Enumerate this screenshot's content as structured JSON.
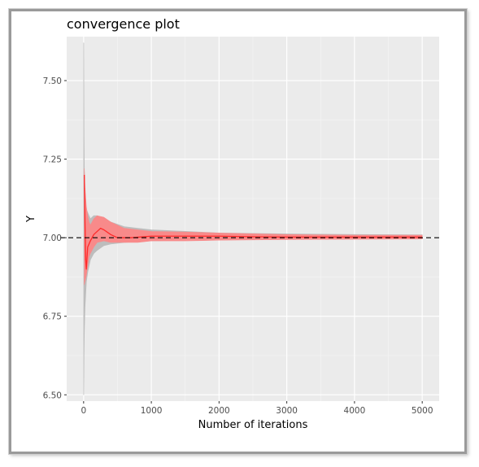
{
  "chart_data": {
    "type": "line",
    "title": "convergence plot",
    "xlabel": "Number of iterations",
    "ylabel": "Y",
    "xlim": [
      -250,
      5250
    ],
    "ylim": [
      6.48,
      7.64
    ],
    "x_ticks": [
      0,
      1000,
      2000,
      3000,
      4000,
      5000
    ],
    "x_tick_labels": [
      "0",
      "1000",
      "2000",
      "3000",
      "4000",
      "5000"
    ],
    "y_ticks": [
      6.5,
      6.75,
      7.0,
      7.25,
      7.5
    ],
    "y_tick_labels": [
      "6.50",
      "6.75",
      "7.00",
      "7.25",
      "7.50"
    ],
    "reference_line": {
      "y": 7.0,
      "style": "dashed",
      "color": "#000000"
    },
    "grid": true,
    "series": [
      {
        "role": "outer-band",
        "color": "#bdbdbd",
        "x": [
          1,
          5,
          10,
          20,
          40,
          60,
          80,
          100,
          150,
          200,
          300,
          400,
          600,
          800,
          1000,
          1500,
          2000,
          3000,
          4000,
          5000
        ],
        "upper": [
          7.62,
          7.33,
          7.22,
          7.13,
          7.09,
          7.08,
          7.07,
          7.06,
          7.07,
          7.07,
          7.06,
          7.05,
          7.035,
          7.03,
          7.025,
          7.02,
          7.015,
          7.012,
          7.01,
          7.009
        ],
        "lower": [
          6.5,
          6.62,
          6.7,
          6.78,
          6.86,
          6.89,
          6.91,
          6.93,
          6.95,
          6.96,
          6.975,
          6.98,
          6.985,
          6.988,
          6.99,
          6.992,
          6.994,
          6.995,
          6.996,
          6.997
        ]
      },
      {
        "role": "inner-band",
        "color": "#f88a8a",
        "x": [
          10,
          20,
          40,
          60,
          80,
          100,
          150,
          200,
          300,
          400,
          600,
          800,
          1000,
          1500,
          2000,
          3000,
          4000,
          5000
        ],
        "upper": [
          7.22,
          7.16,
          7.1,
          7.07,
          7.05,
          7.04,
          7.06,
          7.07,
          7.065,
          7.05,
          7.03,
          7.025,
          7.02,
          7.018,
          7.015,
          7.01,
          7.008,
          7.008
        ],
        "lower": [
          6.85,
          6.86,
          6.88,
          6.91,
          6.94,
          6.95,
          6.97,
          6.985,
          6.99,
          6.985,
          6.985,
          6.985,
          6.99,
          6.99,
          6.992,
          6.994,
          6.995,
          6.996
        ]
      },
      {
        "role": "mean-line",
        "color": "#ff2a2a",
        "x": [
          10,
          20,
          30,
          40,
          60,
          80,
          100,
          150,
          200,
          250,
          300,
          400,
          500,
          700,
          1000,
          1500,
          2000,
          2500,
          3000,
          4000,
          5000
        ],
        "y": [
          7.2,
          7.05,
          6.93,
          6.9,
          6.97,
          6.98,
          6.99,
          7.01,
          7.02,
          7.03,
          7.025,
          7.01,
          7.0,
          7.0,
          7.005,
          7.005,
          7.005,
          7.003,
          7.002,
          7.002,
          7.002
        ]
      }
    ]
  }
}
